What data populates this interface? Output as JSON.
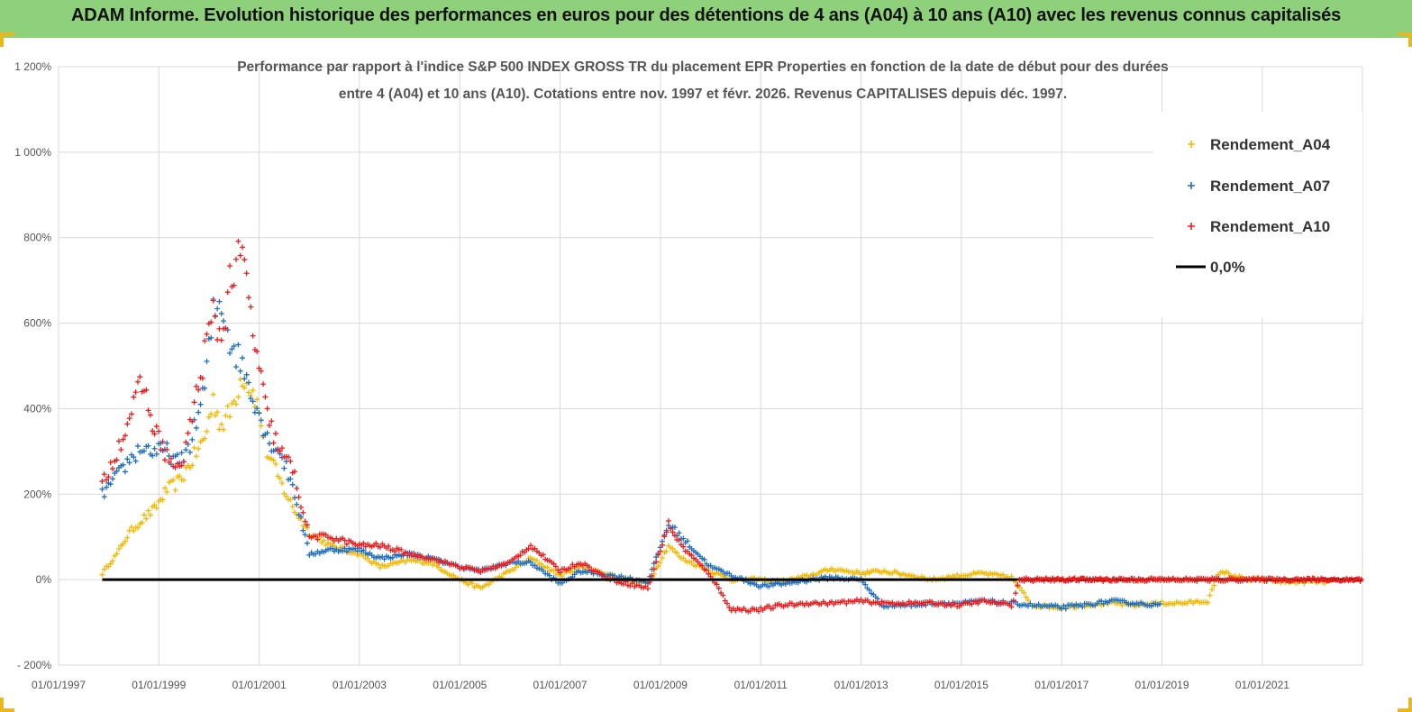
{
  "header": {
    "title": "ADAM Informe. Evolution historique des performances en euros pour des détentions de 4 ans (A04) à 10 ans (A10) avec les revenus connus capitalisés"
  },
  "colors": {
    "banner": "#8fd17a",
    "a04": "#f5b800",
    "a07": "#1f6fc0",
    "a10": "#ee1c1c",
    "zero": "#000000"
  },
  "chart_data": {
    "type": "scatter",
    "title_line1": "Performance par rapport à l'indice S&P 500 INDEX GROSS TR  du placement EPR Properties en fonction de la date de début pour des durées",
    "title_line2": "entre 4 (A04) et 10 ans (A10). Cotations entre nov. 1997 et févr. 2026. Revenus CAPITALISES depuis déc. 1997.",
    "xlabel": "",
    "ylabel": "",
    "x_range": [
      "01/01/1997",
      "12/31/2022"
    ],
    "ylim": [
      -200,
      1200
    ],
    "y_ticks": [
      "1 200%",
      "1 000%",
      "800%",
      "600%",
      "400%",
      "200%",
      "0%",
      "- 200%"
    ],
    "x_ticks": [
      "01/01/1997",
      "01/01/1999",
      "01/01/2001",
      "01/01/2003",
      "01/01/2005",
      "01/01/2007",
      "01/01/2009",
      "01/01/2011",
      "01/01/2013",
      "01/01/2015",
      "01/01/2017",
      "01/01/2019",
      "01/01/2021"
    ],
    "grid": true,
    "legend_position": "top-right",
    "series": [
      {
        "name": "Rendement_A04",
        "points": [
          [
            "1997-11-15",
            15
          ],
          [
            "1998-03-01",
            60
          ],
          [
            "1998-06-01",
            110
          ],
          [
            "1998-09-01",
            140
          ],
          [
            "1998-12-01",
            165
          ],
          [
            "1999-03-01",
            210
          ],
          [
            "1999-06-01",
            230
          ],
          [
            "1999-09-01",
            280
          ],
          [
            "1999-12-01",
            330
          ],
          [
            "2000-02-01",
            420
          ],
          [
            "2000-04-01",
            360
          ],
          [
            "2000-06-01",
            390
          ],
          [
            "2000-09-01",
            480
          ],
          [
            "2000-12-01",
            430
          ],
          [
            "2001-03-01",
            300
          ],
          [
            "2001-06-01",
            230
          ],
          [
            "2001-09-01",
            170
          ],
          [
            "2002-01-01",
            110
          ],
          [
            "2002-06-01",
            80
          ],
          [
            "2003-01-01",
            60
          ],
          [
            "2003-06-01",
            30
          ],
          [
            "2004-01-01",
            45
          ],
          [
            "2004-06-01",
            40
          ],
          [
            "2005-01-01",
            0
          ],
          [
            "2005-06-01",
            -20
          ],
          [
            "2006-01-01",
            20
          ],
          [
            "2006-06-01",
            50
          ],
          [
            "2007-01-01",
            10
          ],
          [
            "2007-06-01",
            30
          ],
          [
            "2008-01-01",
            10
          ],
          [
            "2008-10-01",
            -10
          ],
          [
            "2009-03-01",
            80
          ],
          [
            "2009-06-01",
            50
          ],
          [
            "2010-01-01",
            20
          ],
          [
            "2010-06-01",
            0
          ],
          [
            "2011-01-01",
            0
          ],
          [
            "2011-06-01",
            -5
          ],
          [
            "2012-01-01",
            10
          ],
          [
            "2012-06-01",
            25
          ],
          [
            "2013-01-01",
            15
          ],
          [
            "2013-06-01",
            20
          ],
          [
            "2014-01-01",
            10
          ],
          [
            "2014-06-01",
            0
          ],
          [
            "2015-01-01",
            10
          ],
          [
            "2015-06-01",
            15
          ],
          [
            "2016-01-01",
            5
          ],
          [
            "2016-06-01",
            -60
          ],
          [
            "2017-01-01",
            -65
          ],
          [
            "2017-06-01",
            -60
          ],
          [
            "2018-01-01",
            -55
          ],
          [
            "2018-06-01",
            -60
          ],
          [
            "2019-01-01",
            -55
          ],
          [
            "2019-06-01",
            -55
          ],
          [
            "2019-12-01",
            -50
          ],
          [
            "2020-03-01",
            20
          ],
          [
            "2020-06-01",
            10
          ],
          [
            "2020-09-01",
            0
          ],
          [
            "2021-01-01",
            0
          ],
          [
            "2021-06-01",
            -5
          ],
          [
            "2022-01-01",
            -5
          ],
          [
            "2022-06-01",
            -5
          ]
        ]
      },
      {
        "name": "Rendement_A07",
        "points": [
          [
            "1997-11-15",
            200
          ],
          [
            "1998-03-01",
            240
          ],
          [
            "1998-06-01",
            280
          ],
          [
            "1998-09-01",
            310
          ],
          [
            "1998-12-01",
            300
          ],
          [
            "1999-03-01",
            300
          ],
          [
            "1999-06-01",
            270
          ],
          [
            "1999-09-01",
            330
          ],
          [
            "1999-12-01",
            450
          ],
          [
            "2000-02-01",
            620
          ],
          [
            "2000-04-01",
            650
          ],
          [
            "2000-06-01",
            560
          ],
          [
            "2000-09-01",
            500
          ],
          [
            "2000-12-01",
            420
          ],
          [
            "2001-03-01",
            330
          ],
          [
            "2001-06-01",
            300
          ],
          [
            "2001-09-01",
            220
          ],
          [
            "2002-01-01",
            60
          ],
          [
            "2002-06-01",
            70
          ],
          [
            "2003-01-01",
            70
          ],
          [
            "2003-06-01",
            50
          ],
          [
            "2004-01-01",
            60
          ],
          [
            "2004-06-01",
            50
          ],
          [
            "2005-01-01",
            30
          ],
          [
            "2005-06-01",
            20
          ],
          [
            "2006-01-01",
            40
          ],
          [
            "2006-06-01",
            40
          ],
          [
            "2007-01-01",
            -10
          ],
          [
            "2007-06-01",
            20
          ],
          [
            "2008-01-01",
            10
          ],
          [
            "2008-10-01",
            -5
          ],
          [
            "2009-03-01",
            130
          ],
          [
            "2009-06-01",
            100
          ],
          [
            "2010-01-01",
            30
          ],
          [
            "2010-06-01",
            10
          ],
          [
            "2011-01-01",
            -15
          ],
          [
            "2011-06-01",
            -10
          ],
          [
            "2012-01-01",
            0
          ],
          [
            "2012-06-01",
            5
          ],
          [
            "2013-01-01",
            0
          ],
          [
            "2013-06-01",
            -60
          ],
          [
            "2014-01-01",
            -60
          ],
          [
            "2014-06-01",
            -55
          ],
          [
            "2015-01-01",
            -55
          ],
          [
            "2015-06-01",
            -50
          ],
          [
            "2016-01-01",
            -55
          ],
          [
            "2016-06-01",
            -60
          ],
          [
            "2017-01-01",
            -65
          ],
          [
            "2017-06-01",
            -60
          ],
          [
            "2018-01-01",
            -50
          ],
          [
            "2018-06-01",
            -55
          ],
          [
            "2019-01-01",
            -60
          ]
        ]
      },
      {
        "name": "Rendement_A10",
        "points": [
          [
            "1997-11-15",
            220
          ],
          [
            "1998-03-01",
            300
          ],
          [
            "1998-06-01",
            380
          ],
          [
            "1998-09-01",
            460
          ],
          [
            "1998-12-01",
            350
          ],
          [
            "1999-03-01",
            290
          ],
          [
            "1999-06-01",
            250
          ],
          [
            "1999-09-01",
            380
          ],
          [
            "1999-12-01",
            530
          ],
          [
            "2000-02-01",
            620
          ],
          [
            "2000-04-01",
            560
          ],
          [
            "2000-06-01",
            700
          ],
          [
            "2000-09-01",
            760
          ],
          [
            "2000-12-01",
            550
          ],
          [
            "2001-03-01",
            380
          ],
          [
            "2001-06-01",
            300
          ],
          [
            "2001-09-01",
            260
          ],
          [
            "2002-01-01",
            100
          ],
          [
            "2002-06-01",
            100
          ],
          [
            "2003-01-01",
            80
          ],
          [
            "2003-06-01",
            80
          ],
          [
            "2004-01-01",
            60
          ],
          [
            "2004-06-01",
            50
          ],
          [
            "2005-01-01",
            30
          ],
          [
            "2005-06-01",
            20
          ],
          [
            "2006-01-01",
            40
          ],
          [
            "2006-06-01",
            80
          ],
          [
            "2007-01-01",
            20
          ],
          [
            "2007-06-01",
            40
          ],
          [
            "2008-01-01",
            0
          ],
          [
            "2008-10-01",
            -20
          ],
          [
            "2009-03-01",
            130
          ],
          [
            "2009-06-01",
            80
          ],
          [
            "2010-01-01",
            10
          ],
          [
            "2010-06-01",
            -70
          ],
          [
            "2011-01-01",
            -70
          ],
          [
            "2011-06-01",
            -60
          ],
          [
            "2012-01-01",
            -55
          ],
          [
            "2012-06-01",
            -55
          ],
          [
            "2013-01-01",
            -50
          ],
          [
            "2013-06-01",
            -55
          ],
          [
            "2014-01-01",
            -55
          ],
          [
            "2014-06-01",
            -55
          ],
          [
            "2015-01-01",
            -60
          ],
          [
            "2015-06-01",
            -50
          ],
          [
            "2016-01-01",
            -60
          ],
          [
            "2016-03-01",
            0
          ],
          [
            "2017-01-01",
            0
          ],
          [
            "2018-01-01",
            0
          ],
          [
            "2019-01-01",
            0
          ],
          [
            "2020-01-01",
            0
          ],
          [
            "2021-01-01",
            0
          ],
          [
            "2022-01-01",
            0
          ],
          [
            "2022-12-31",
            0
          ]
        ]
      },
      {
        "name": "0,0%",
        "points": [
          [
            "1997-11-15",
            0
          ],
          [
            "2022-12-31",
            0
          ]
        ]
      }
    ]
  }
}
